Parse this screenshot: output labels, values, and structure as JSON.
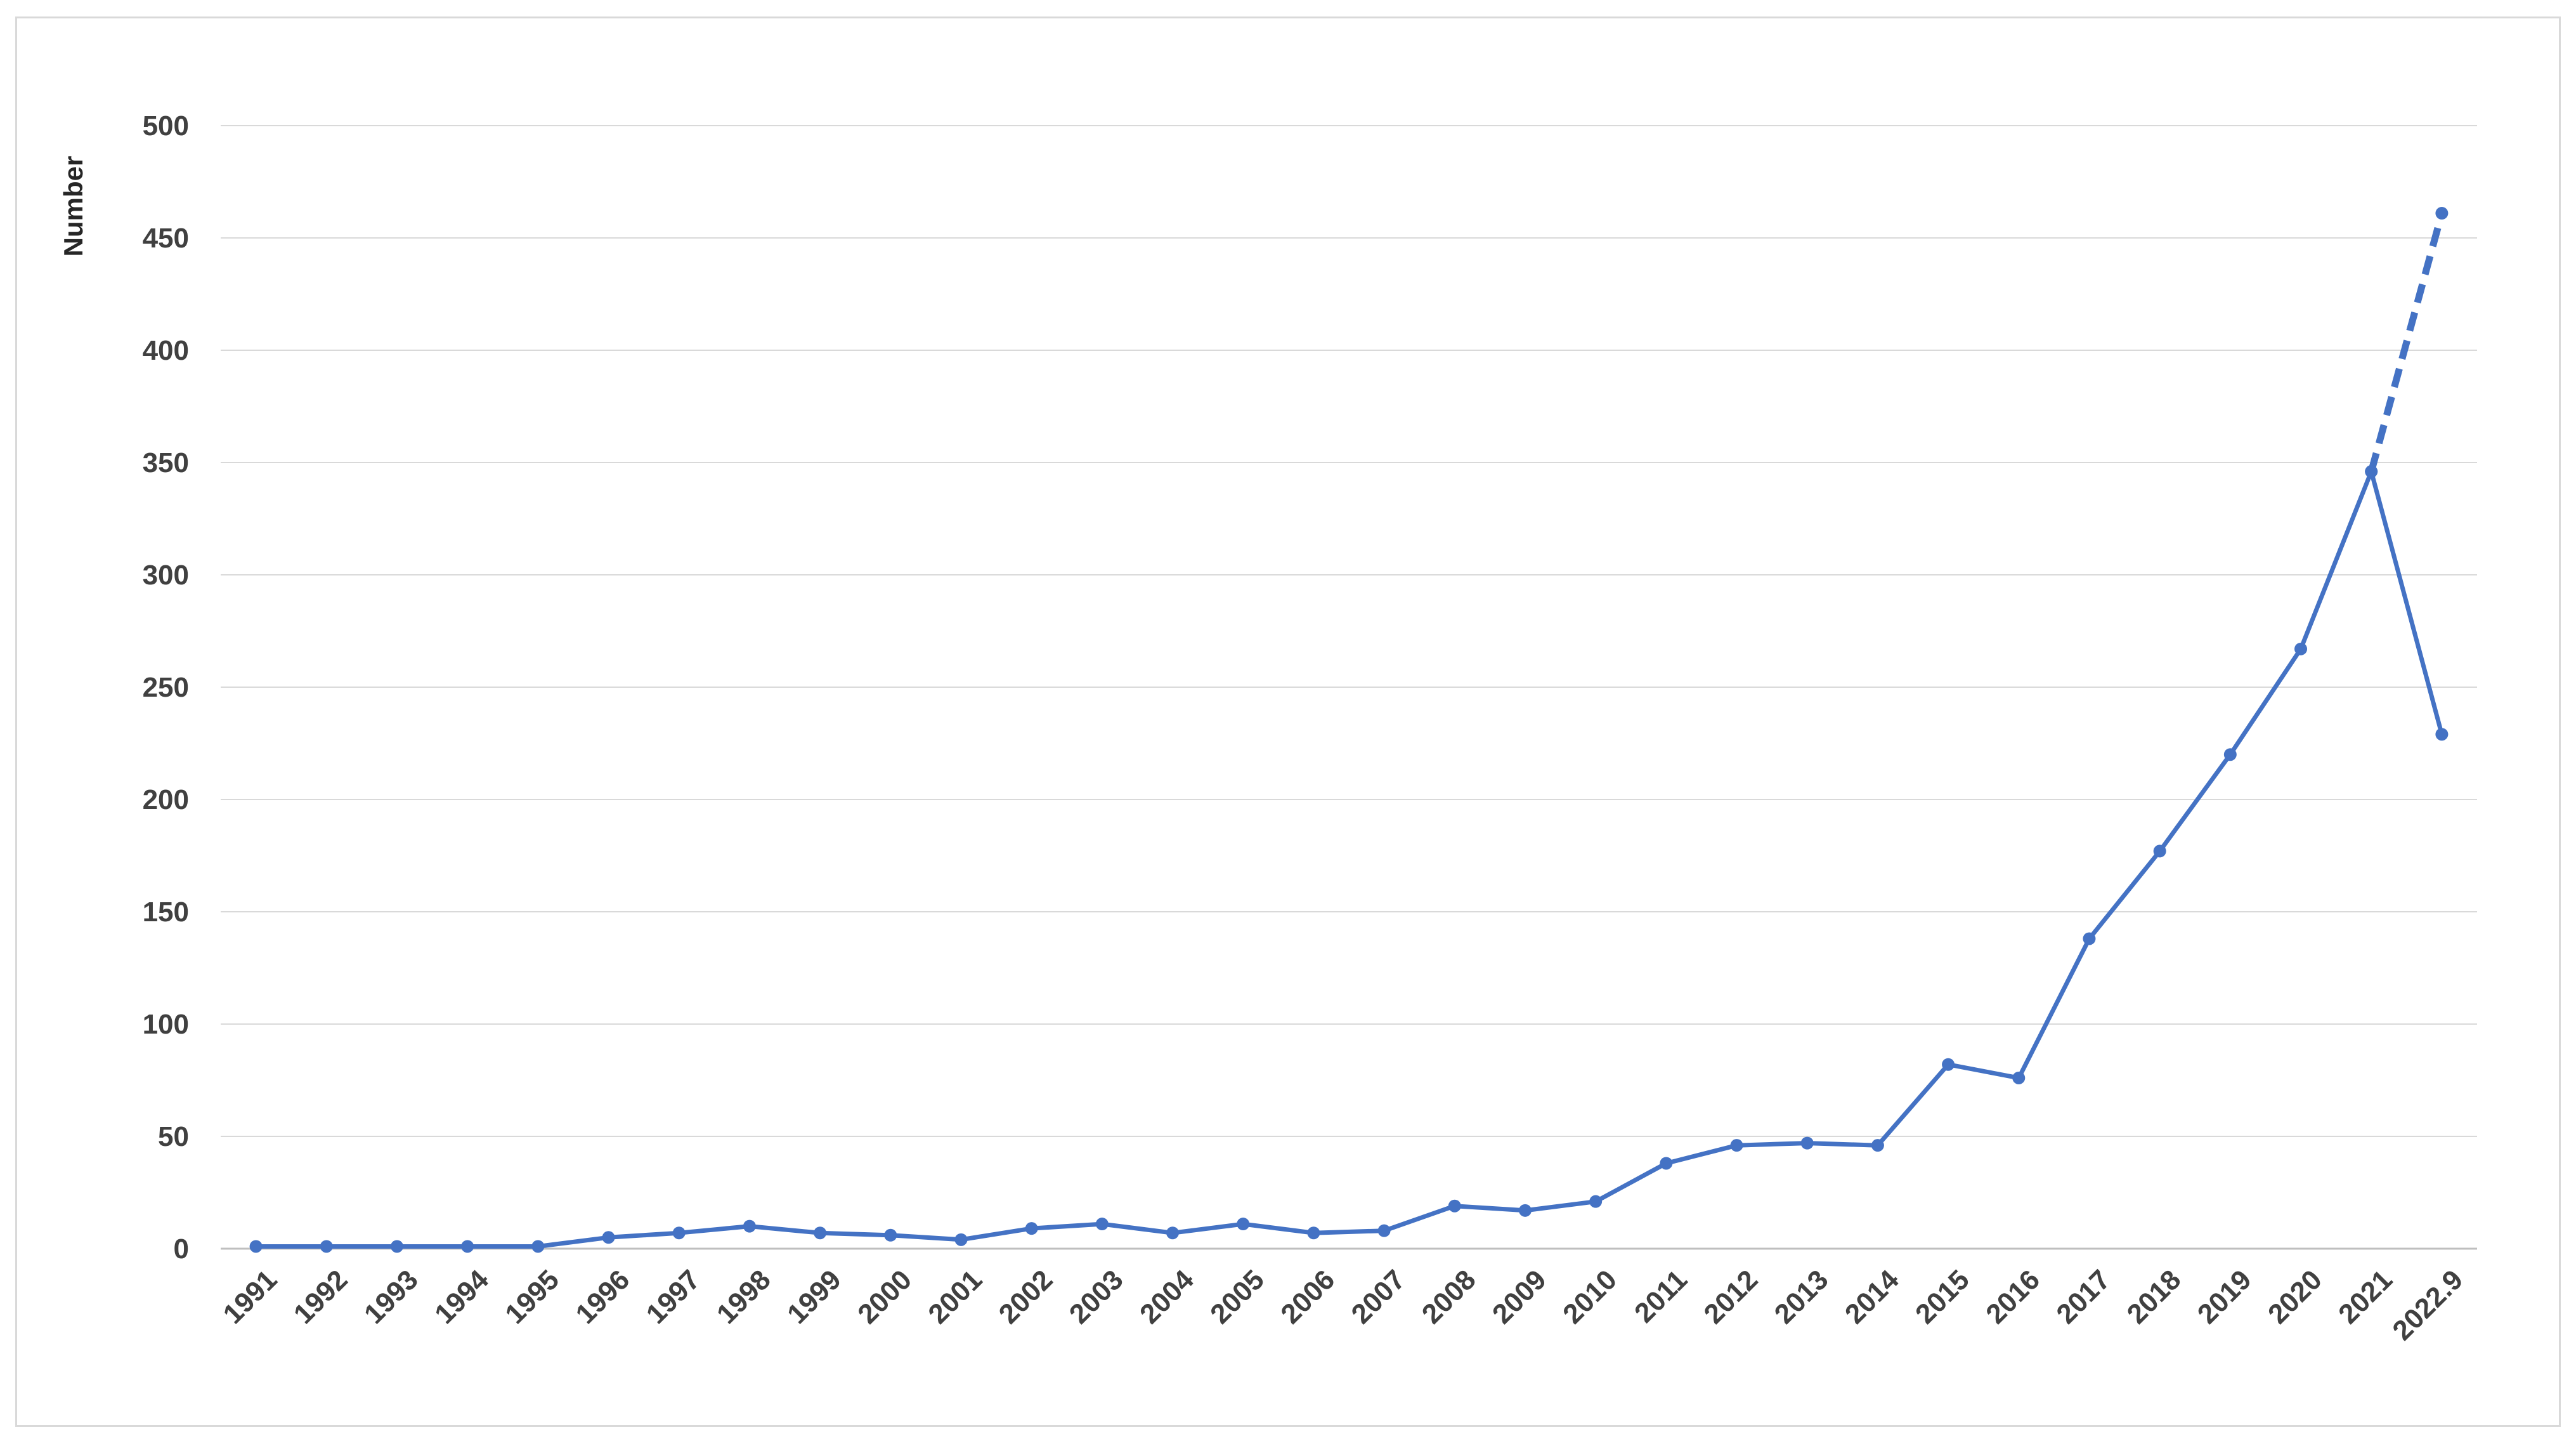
{
  "chart_data": {
    "type": "line",
    "title": "",
    "xlabel": "",
    "ylabel": "Number",
    "ylim": [
      0,
      500
    ],
    "yticks": [
      0,
      50,
      100,
      150,
      200,
      250,
      300,
      350,
      400,
      450,
      500
    ],
    "grid": true,
    "legend": "none",
    "categories": [
      "1991",
      "1992",
      "1993",
      "1994",
      "1995",
      "1996",
      "1997",
      "1998",
      "1999",
      "2000",
      "2001",
      "2002",
      "2003",
      "2004",
      "2005",
      "2006",
      "2007",
      "2008",
      "2009",
      "2010",
      "2011",
      "2012",
      "2013",
      "2014",
      "2015",
      "2016",
      "2017",
      "2018",
      "2019",
      "2020",
      "2021",
      "2022.9"
    ],
    "series": [
      {
        "style": "solid",
        "color": "#4472c4",
        "values": [
          1,
          1,
          1,
          1,
          1,
          5,
          7,
          10,
          7,
          6,
          4,
          9,
          11,
          7,
          11,
          7,
          8,
          19,
          17,
          21,
          38,
          46,
          47,
          46,
          82,
          76,
          138,
          177,
          220,
          267,
          346,
          229
        ]
      },
      {
        "style": "dashed",
        "color": "#4472c4",
        "x": [
          "2021",
          "2022.9"
        ],
        "values": [
          346,
          461
        ]
      }
    ]
  }
}
